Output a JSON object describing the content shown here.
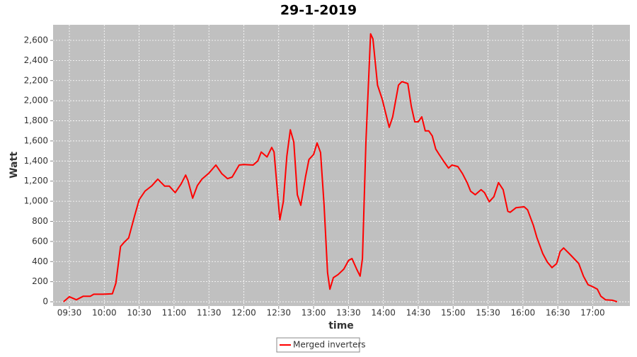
{
  "chart_data": {
    "type": "line",
    "title": "29-1-2019",
    "x_label": "time",
    "y_label": "Watt",
    "x": [
      565,
      570,
      576,
      582,
      588,
      591,
      599,
      607,
      610,
      614,
      617,
      621,
      626,
      630,
      635,
      641,
      646,
      652,
      656,
      661,
      666,
      670,
      672,
      676,
      680,
      684,
      690,
      696,
      701,
      706,
      710,
      716,
      720,
      728,
      732,
      735,
      740,
      744,
      746,
      751,
      754,
      757,
      760,
      763,
      766,
      769,
      773,
      776,
      780,
      783,
      786,
      789,
      792,
      794,
      797,
      801,
      806,
      810,
      813,
      817,
      820,
      822,
      825,
      829,
      831,
      835,
      839,
      845,
      848,
      853,
      856,
      861,
      864,
      867,
      870,
      873,
      876,
      879,
      882,
      885,
      888,
      892,
      896,
      899,
      904,
      908,
      912,
      915,
      919,
      924,
      927,
      931,
      935,
      939,
      943,
      947,
      949,
      954,
      961,
      964,
      969,
      972,
      977,
      981,
      985,
      989,
      992,
      995,
      1001,
      1008,
      1012,
      1016,
      1020,
      1024,
      1027,
      1031,
      1037,
      1041
    ],
    "series": [
      {
        "name": "Merged inverters",
        "color": "#ff0000",
        "values": [
          0,
          50,
          20,
          55,
          55,
          75,
          75,
          80,
          185,
          550,
          590,
          635,
          850,
          1015,
          1100,
          1155,
          1220,
          1150,
          1150,
          1085,
          1170,
          1260,
          1205,
          1030,
          1155,
          1220,
          1280,
          1360,
          1275,
          1225,
          1240,
          1360,
          1365,
          1360,
          1400,
          1490,
          1440,
          1535,
          1490,
          815,
          995,
          1450,
          1710,
          1590,
          1065,
          960,
          1240,
          1415,
          1465,
          1580,
          1485,
          960,
          290,
          125,
          240,
          270,
          325,
          410,
          430,
          325,
          255,
          430,
          1590,
          2665,
          2615,
          2155,
          2015,
          1735,
          1840,
          2155,
          2190,
          2170,
          1945,
          1790,
          1790,
          1840,
          1700,
          1700,
          1650,
          1520,
          1465,
          1395,
          1330,
          1360,
          1345,
          1275,
          1185,
          1100,
          1065,
          1115,
          1085,
          995,
          1045,
          1185,
          1115,
          900,
          890,
          935,
          945,
          915,
          760,
          640,
          480,
          395,
          340,
          380,
          500,
          535,
          465,
          380,
          255,
          170,
          150,
          125,
          55,
          20,
          15,
          0
        ]
      }
    ],
    "xlim": [
      556,
      1052
    ],
    "ylim": [
      -42,
      2755
    ],
    "xticks": [
      {
        "value": 570,
        "label": "09:30"
      },
      {
        "value": 600,
        "label": "10:00"
      },
      {
        "value": 630,
        "label": "10:30"
      },
      {
        "value": 660,
        "label": "11:00"
      },
      {
        "value": 690,
        "label": "11:30"
      },
      {
        "value": 720,
        "label": "12:00"
      },
      {
        "value": 750,
        "label": "12:30"
      },
      {
        "value": 780,
        "label": "13:00"
      },
      {
        "value": 810,
        "label": "13:30"
      },
      {
        "value": 840,
        "label": "14:00"
      },
      {
        "value": 870,
        "label": "14:30"
      },
      {
        "value": 900,
        "label": "15:00"
      },
      {
        "value": 930,
        "label": "15:30"
      },
      {
        "value": 960,
        "label": "16:00"
      },
      {
        "value": 990,
        "label": "16:30"
      },
      {
        "value": 1020,
        "label": "17:00"
      }
    ],
    "yticks": [
      0,
      200,
      400,
      600,
      800,
      {
        "value": 1000,
        "label": "1,000"
      },
      {
        "value": 1200,
        "label": "1,200"
      },
      {
        "value": 1400,
        "label": "1,400"
      },
      {
        "value": 1600,
        "label": "1,600"
      },
      {
        "value": 1800,
        "label": "1,800"
      },
      {
        "value": 2000,
        "label": "2,000"
      },
      {
        "value": 2200,
        "label": "2,200"
      },
      {
        "value": 2400,
        "label": "2,400"
      },
      {
        "value": 2600,
        "label": "2,600"
      }
    ],
    "grid": true,
    "legend": "bottom"
  }
}
